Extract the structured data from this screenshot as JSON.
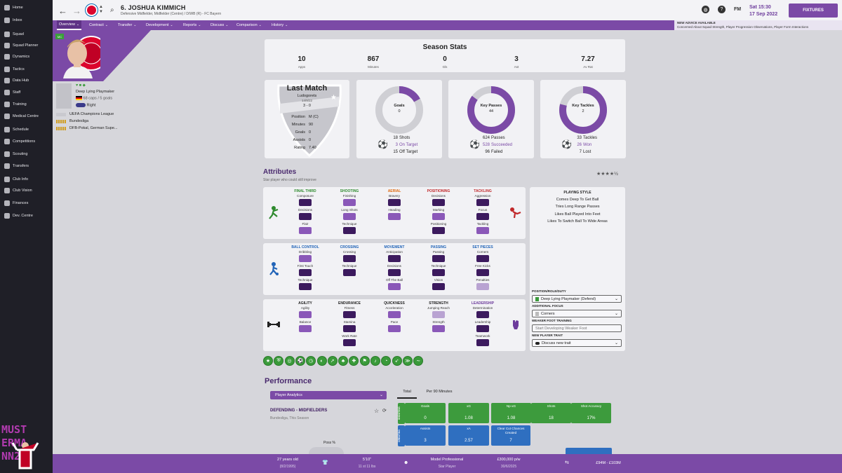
{
  "sidebar": {
    "items": [
      {
        "label": "Home",
        "icon": "home-icon"
      },
      {
        "label": "Inbox",
        "icon": "inbox-icon"
      },
      {
        "label": "Squad",
        "icon": "squad-icon"
      },
      {
        "label": "Squad Planner",
        "icon": "planner-icon"
      },
      {
        "label": "Dynamics",
        "icon": "dynamics-icon"
      },
      {
        "label": "Tactics",
        "icon": "tactics-icon"
      },
      {
        "label": "Data Hub",
        "icon": "datahub-icon"
      },
      {
        "label": "Staff",
        "icon": "staff-icon"
      },
      {
        "label": "Training",
        "icon": "training-icon"
      },
      {
        "label": "Medical Centre",
        "icon": "medical-icon"
      },
      {
        "label": "Schedule",
        "icon": "schedule-icon"
      },
      {
        "label": "Competitions",
        "icon": "trophy-icon"
      },
      {
        "label": "Scouting",
        "icon": "scouting-icon"
      },
      {
        "label": "Transfers",
        "icon": "transfers-icon"
      },
      {
        "label": "Club Info",
        "icon": "clubinfo-icon"
      },
      {
        "label": "Club Vision",
        "icon": "vision-icon"
      },
      {
        "label": "Finances",
        "icon": "finances-icon"
      },
      {
        "label": "Dev. Centre",
        "icon": "devcentre-icon"
      }
    ],
    "watermark_lines": [
      "MUST",
      "ERMA",
      "NN23"
    ]
  },
  "header": {
    "title": "6. JOSHUA KIMMICH",
    "subtitle": "Defensive Midfielder, Midfielder (Centre) / D/WB (R) - FC Bayern",
    "game_label": "FM",
    "date_day": "Sat 15:30",
    "date": "17 Sep 2022",
    "fixtures_label": "FIXTURES"
  },
  "menu": {
    "items": [
      "Overview",
      "Contract",
      "Transfer",
      "Development",
      "Reports",
      "Discuss",
      "Comparison",
      "History"
    ],
    "advice_title": "NEW ADVICE AVAILABLE",
    "advice_text": "Concerned About Squad Strength, Player Progression Observations, Player Form Interactions"
  },
  "profile": {
    "position_badge": "MC",
    "role": "Deep Lying Playmaker",
    "caps": "68 caps / 5 goals",
    "foot": "Right",
    "competitions": [
      "UEFA Champions League",
      "Bundesliga",
      "DFB-Pokal, German Supe..."
    ]
  },
  "season_stats": {
    "title": "Season Stats",
    "items": [
      {
        "value": "10",
        "label": "Apps"
      },
      {
        "value": "867",
        "label": "Minutes"
      },
      {
        "value": "0",
        "label": "Gls"
      },
      {
        "value": "3",
        "label": "Ast"
      },
      {
        "value": "7.27",
        "label": "Av Rat"
      }
    ]
  },
  "last_match": {
    "title": "Last Match",
    "opponent": "Ludogorets",
    "date": "14/9/22",
    "score": "3 - 0",
    "rows": [
      {
        "label": "Position",
        "value": "M (C)"
      },
      {
        "label": "Minutes",
        "value": "90"
      },
      {
        "label": "Goals",
        "value": "0"
      },
      {
        "label": "Assists",
        "value": "0"
      },
      {
        "label": "Rating",
        "value": "7.40"
      }
    ]
  },
  "rings": [
    {
      "title": "Goals",
      "value": "0",
      "fraction": 0.17,
      "legend": [
        {
          "n": "18",
          "t": "Shots"
        },
        {
          "n": "3",
          "t": "On Target"
        },
        {
          "n": "15",
          "t": "Off Target"
        }
      ]
    },
    {
      "title": "Key Passes",
      "value": "44",
      "fraction": 0.85,
      "legend": [
        {
          "n": "624",
          "t": "Passes"
        },
        {
          "n": "528",
          "t": "Succeeded"
        },
        {
          "n": "96",
          "t": "Failed"
        }
      ]
    },
    {
      "title": "Key Tackles",
      "value": "2",
      "fraction": 0.79,
      "legend": [
        {
          "n": "33",
          "t": "Tackles"
        },
        {
          "n": "26",
          "t": "Won"
        },
        {
          "n": "7",
          "t": "Lost"
        }
      ]
    }
  ],
  "attributes": {
    "title": "Attributes",
    "subtitle": "Star player who could still improve",
    "stars": "★★★★½",
    "groups": [
      {
        "title": "FINAL THIRD",
        "color": "#2e8a2e",
        "attrs": [
          [
            "Composure",
            "dark"
          ],
          [
            "Decisions",
            "dark"
          ],
          [
            "Flair",
            "mid"
          ]
        ]
      },
      {
        "title": "SHOOTING",
        "color": "#2e8a2e",
        "attrs": [
          [
            "Finishing",
            "mid"
          ],
          [
            "Long Shots",
            "mid"
          ],
          [
            "Technique",
            "dark"
          ]
        ]
      },
      {
        "title": "AERIAL",
        "color": "#e06b10",
        "attrs": [
          [
            "Bravery",
            "dark"
          ],
          [
            "Heading",
            "mid"
          ]
        ]
      },
      {
        "title": "POSITIONING",
        "color": "#c0282a",
        "attrs": [
          [
            "Decisions",
            "dark"
          ],
          [
            "Marking",
            "mid"
          ],
          [
            "Positioning",
            "dark"
          ]
        ]
      },
      {
        "title": "TACKLING",
        "color": "#c0282a",
        "attrs": [
          [
            "Aggression",
            "dark"
          ],
          [
            "Focus",
            "dark"
          ],
          [
            "Tackling",
            "mid"
          ]
        ]
      },
      {
        "title": "BALL CONTROL",
        "color": "#2164b8",
        "attrs": [
          [
            "Dribbling",
            "mid"
          ],
          [
            "First Touch",
            "dark"
          ],
          [
            "Technique",
            "dark"
          ]
        ]
      },
      {
        "title": "CROSSING",
        "color": "#2164b8",
        "attrs": [
          [
            "Crossing",
            "dark"
          ],
          [
            "Technique",
            "dark"
          ]
        ]
      },
      {
        "title": "MOVEMENT",
        "color": "#2164b8",
        "attrs": [
          [
            "Anticipation",
            "dark"
          ],
          [
            "Decisions",
            "dark"
          ],
          [
            "Off The Ball",
            "mid"
          ]
        ]
      },
      {
        "title": "PASSING",
        "color": "#2164b8",
        "attrs": [
          [
            "Passing",
            "dark"
          ],
          [
            "Technique",
            "dark"
          ],
          [
            "Vision",
            "dark"
          ]
        ]
      },
      {
        "title": "SET PIECES",
        "color": "#2164b8",
        "attrs": [
          [
            "Corners",
            "dark"
          ],
          [
            "Free Kicks",
            "dark"
          ],
          [
            "Penalties",
            "light"
          ]
        ]
      },
      {
        "title": "AGILITY",
        "color": "#222222",
        "attrs": [
          [
            "Agility",
            "mid"
          ],
          [
            "Balance",
            "mid"
          ]
        ]
      },
      {
        "title": "ENDURANCE",
        "color": "#222222",
        "attrs": [
          [
            "Fitness",
            "dark"
          ],
          [
            "Stamina",
            "dark"
          ],
          [
            "Work Rate",
            "dark"
          ]
        ]
      },
      {
        "title": "QUICKNESS",
        "color": "#222222",
        "attrs": [
          [
            "Acceleration",
            "mid"
          ],
          [
            "Pace",
            "mid"
          ]
        ]
      },
      {
        "title": "STRENGTH",
        "color": "#222222",
        "attrs": [
          [
            "Jumping Reach",
            "light"
          ],
          [
            "Strength",
            "mid"
          ]
        ]
      },
      {
        "title": "LEADERSHIP",
        "color": "#6d3c9c",
        "attrs": [
          [
            "Determination",
            "dark"
          ],
          [
            "Leadership",
            "dark"
          ],
          [
            "Teamwork",
            "dark"
          ]
        ]
      }
    ]
  },
  "playing_style": {
    "title": "PLAYING STYLE",
    "lines": [
      "Comes Deep To Get Ball",
      "Tries Long Range Passes",
      "Likes Ball Played Into Feet",
      "Likes To Switch Ball To Wide Areas"
    ]
  },
  "role_settings": {
    "position_label": "POSITION/ROLE/DUTY",
    "position_value": "Deep Lying Playmaker (Defend)",
    "focus_label": "ADDITIONAL FOCUS",
    "focus_value": "Corners",
    "weaker_label": "WEAKER FOOT TRAINING",
    "weaker_placeholder": "Start Developing Weaker Foot",
    "trait_label": "NEW PLAYER TRAIT",
    "trait_value": "Discuss new trait"
  },
  "performance": {
    "title": "Performance",
    "dropdown": "Player Analytics",
    "tabs": [
      "Total",
      "Per 90 Minutes"
    ],
    "section_title": "DEFENDING - MIDFIELDERS",
    "section_sub": "Bundesliga, This Season",
    "pct_label": "Poss %",
    "shooting_label": "SHOOTING",
    "creating_label": "CREATING",
    "shooting": [
      {
        "label": "Goals",
        "value": "0"
      },
      {
        "label": "xG",
        "value": "1.08"
      },
      {
        "label": "Np-xG",
        "value": "1.08"
      },
      {
        "label": "Shots",
        "value": "18"
      },
      {
        "label": "Shot Accuracy",
        "value": "17%"
      }
    ],
    "creating": [
      {
        "label": "Assists",
        "value": "3"
      },
      {
        "label": "xA",
        "value": "2.57"
      },
      {
        "label": "Clear Cut Chances Created",
        "value": "7"
      }
    ]
  },
  "bottom": {
    "age": "27 years old",
    "dob": "(8/2/1995)",
    "height": "5'10\"",
    "weight": "11 st 11 lbs",
    "status": "Model Professional",
    "status2": "Star Player",
    "wage": "£300,000 p/w",
    "contract": "30/6/2025",
    "value": "£94M - £103M"
  },
  "colors": {
    "accent": "#7b4aa6",
    "sidebar": "#1f1f27",
    "dark_attr": "#3c1a5e",
    "mid_attr": "#8a58b8"
  }
}
